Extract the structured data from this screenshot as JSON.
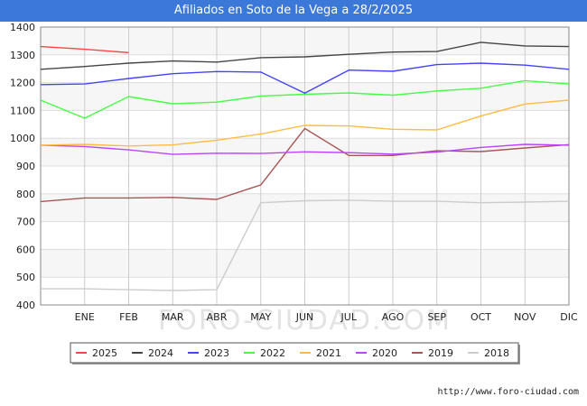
{
  "chart_data": {
    "type": "line",
    "title": "Afiliados en Soto de la Vega a 28/2/2025",
    "xlabel": "",
    "ylabel": "",
    "categories": [
      "ENE",
      "FEB",
      "MAR",
      "ABR",
      "MAY",
      "JUN",
      "JUL",
      "AGO",
      "SEP",
      "OCT",
      "NOV",
      "DIC"
    ],
    "ylim": [
      400,
      1400
    ],
    "yticks": [
      400,
      500,
      600,
      700,
      800,
      900,
      1000,
      1100,
      1200,
      1300,
      1400
    ],
    "series": [
      {
        "name": "2025",
        "color": "#ff4444",
        "points": [
          [
            0,
            1330
          ],
          [
            1,
            1320
          ],
          [
            2,
            1308
          ]
        ]
      },
      {
        "name": "2024",
        "color": "#444444",
        "points": [
          [
            0,
            1248
          ],
          [
            1,
            1258
          ],
          [
            2,
            1270
          ],
          [
            3,
            1278
          ],
          [
            4,
            1274
          ],
          [
            5,
            1290
          ],
          [
            6,
            1293
          ],
          [
            7,
            1302
          ],
          [
            8,
            1310
          ],
          [
            9,
            1312
          ],
          [
            10,
            1345
          ],
          [
            11,
            1332
          ],
          [
            12,
            1330
          ]
        ]
      },
      {
        "name": "2023",
        "color": "#4444ff",
        "points": [
          [
            0,
            1193
          ],
          [
            1,
            1195
          ],
          [
            2,
            1215
          ],
          [
            3,
            1232
          ],
          [
            4,
            1240
          ],
          [
            5,
            1238
          ],
          [
            6,
            1162
          ],
          [
            7,
            1245
          ],
          [
            8,
            1241
          ],
          [
            9,
            1265
          ],
          [
            10,
            1270
          ],
          [
            11,
            1263
          ],
          [
            12,
            1248
          ]
        ]
      },
      {
        "name": "2022",
        "color": "#44ff44",
        "points": [
          [
            0,
            1137
          ],
          [
            1,
            1072
          ],
          [
            2,
            1150
          ],
          [
            3,
            1124
          ],
          [
            4,
            1130
          ],
          [
            5,
            1152
          ],
          [
            6,
            1158
          ],
          [
            7,
            1163
          ],
          [
            8,
            1155
          ],
          [
            9,
            1170
          ],
          [
            10,
            1180
          ],
          [
            11,
            1207
          ],
          [
            12,
            1195
          ]
        ]
      },
      {
        "name": "2021",
        "color": "#ffbb44",
        "points": [
          [
            0,
            975
          ],
          [
            1,
            978
          ],
          [
            2,
            972
          ],
          [
            3,
            976
          ],
          [
            4,
            993
          ],
          [
            5,
            1015
          ],
          [
            6,
            1046
          ],
          [
            7,
            1044
          ],
          [
            8,
            1032
          ],
          [
            9,
            1030
          ],
          [
            10,
            1080
          ],
          [
            11,
            1123
          ],
          [
            12,
            1137
          ]
        ]
      },
      {
        "name": "2020",
        "color": "#bb44ff",
        "points": [
          [
            0,
            975
          ],
          [
            1,
            970
          ],
          [
            2,
            958
          ],
          [
            3,
            942
          ],
          [
            4,
            946
          ],
          [
            5,
            945
          ],
          [
            6,
            951
          ],
          [
            7,
            948
          ],
          [
            8,
            943
          ],
          [
            9,
            950
          ],
          [
            10,
            967
          ],
          [
            11,
            978
          ],
          [
            12,
            975
          ]
        ]
      },
      {
        "name": "2019",
        "color": "#aa5555",
        "points": [
          [
            0,
            772
          ],
          [
            1,
            785
          ],
          [
            2,
            785
          ],
          [
            3,
            787
          ],
          [
            4,
            780
          ],
          [
            5,
            832
          ],
          [
            6,
            1035
          ],
          [
            7,
            938
          ],
          [
            8,
            938
          ],
          [
            9,
            955
          ],
          [
            10,
            952
          ],
          [
            11,
            965
          ],
          [
            12,
            977
          ]
        ]
      },
      {
        "name": "2018",
        "color": "#cccccc",
        "points": [
          [
            0,
            458
          ],
          [
            1,
            458
          ],
          [
            2,
            455
          ],
          [
            3,
            452
          ],
          [
            4,
            455
          ],
          [
            5,
            768
          ],
          [
            6,
            775
          ],
          [
            7,
            777
          ],
          [
            8,
            773
          ],
          [
            9,
            773
          ],
          [
            10,
            768
          ],
          [
            11,
            770
          ],
          [
            12,
            773
          ]
        ]
      }
    ],
    "legend": [
      "2025",
      "2024",
      "2023",
      "2022",
      "2021",
      "2020",
      "2019",
      "2018"
    ],
    "legend_position": "bottom-center",
    "watermark": "FORO-CIUDAD.COM",
    "grid": true
  },
  "source_url": "http://www.foro-ciudad.com"
}
